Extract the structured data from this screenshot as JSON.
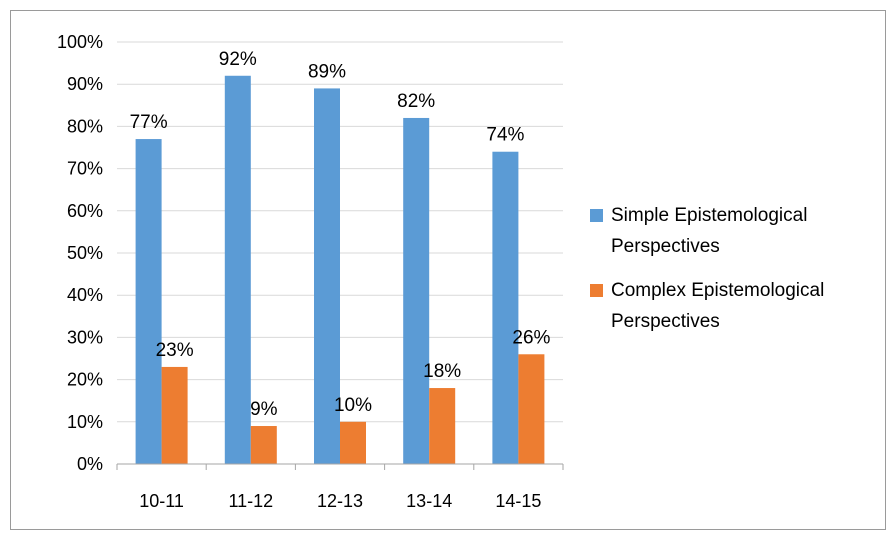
{
  "chart_data": {
    "type": "bar",
    "title": "",
    "xlabel": "",
    "ylabel": "",
    "categories": [
      "10-11",
      "11-12",
      "12-13",
      "13-14",
      "14-15"
    ],
    "ylim": [
      0,
      100
    ],
    "yticks": [
      "0%",
      "10%",
      "20%",
      "30%",
      "40%",
      "50%",
      "60%",
      "70%",
      "80%",
      "90%",
      "100%"
    ],
    "grid": true,
    "legend_position": "right",
    "series": [
      {
        "name": "Simple Epistemological Perspectives",
        "legend_lines": [
          "Simple Epistemological",
          "Perspectives"
        ],
        "color": "#5b9bd5",
        "values": [
          77,
          92,
          89,
          82,
          74
        ],
        "labels": [
          "77%",
          "92%",
          "89%",
          "82%",
          "74%"
        ]
      },
      {
        "name": "Complex Epistemological Perspectives",
        "legend_lines": [
          "Complex Epistemological",
          "Perspectives"
        ],
        "color": "#ed7d31",
        "values": [
          23,
          9,
          10,
          18,
          26
        ],
        "labels": [
          "23%",
          "9%",
          "10%",
          "18%",
          "26%"
        ]
      }
    ]
  }
}
